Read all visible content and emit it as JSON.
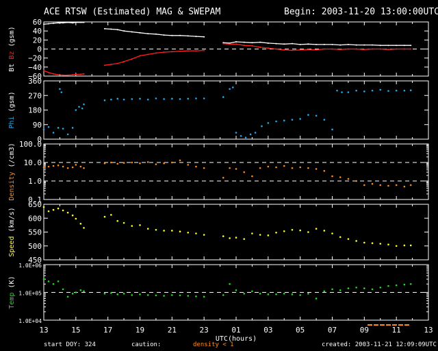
{
  "header": {
    "title": "ACE RTSW (Estimated) MAG & SWEPAM",
    "begin": "Begin: 2003-11-20 13:00:00UTC"
  },
  "footer": {
    "start_doy": "start DOY: 324",
    "caution": "caution:",
    "density_note": "density < 1",
    "created": "created: 2003-11-21 12:09:09UTC"
  },
  "colors": {
    "bt": "#ffffff",
    "bz": "#ff2020",
    "phi": "#22aaee",
    "density": "#ff8c1a",
    "speed": "#ffff20",
    "temp": "#20dd20",
    "axis": "#ffffff",
    "dashed": "#ffffff",
    "background": "#000000"
  },
  "chart_data": [
    {
      "type": "line",
      "panel": "mag",
      "ylabel_parts": [
        {
          "text": "Bt",
          "color": "#ffffff"
        },
        {
          "text": "Bz",
          "color": "#ff2020"
        },
        {
          "text": "(gsm)",
          "color": "#ffffff"
        }
      ],
      "ylim": [
        -60,
        60
      ],
      "scale": "linear",
      "yticks": [
        60,
        40,
        20,
        0,
        -20,
        -40,
        -60
      ],
      "ytick_labels": [
        "60",
        "40",
        "20",
        "0",
        "−20",
        "−40",
        "−60"
      ],
      "dashed": [
        0
      ],
      "series": [
        {
          "key": "bt",
          "x": [
            13.0,
            13.3,
            13.6,
            13.9,
            14.2,
            14.5,
            14.8,
            15.0,
            15.3,
            15.5,
            16.8,
            17.2,
            17.6,
            18.0,
            18.5,
            19.0,
            19.5,
            20.0,
            20.5,
            21.0,
            21.5,
            22.0,
            22.5,
            23.0,
            24.2,
            24.6,
            25.0,
            25.5,
            26.0,
            26.5,
            27.0,
            27.5,
            28.0,
            28.5,
            29.0,
            29.5,
            30.0,
            30.5,
            31.0,
            31.5,
            32.0,
            32.5,
            33.0,
            33.5,
            34.0,
            34.5,
            35.0,
            35.5,
            35.9
          ],
          "y": [
            55,
            56,
            57,
            58,
            58,
            59,
            58,
            59,
            59,
            59,
            45,
            44,
            43,
            40,
            38,
            36,
            34,
            33,
            31,
            30,
            30,
            29,
            28,
            27,
            14,
            13,
            16,
            15,
            14,
            15,
            13,
            12,
            11,
            12,
            10,
            11,
            10,
            10,
            10,
            9,
            10,
            9,
            9,
            9,
            8,
            8,
            8,
            8,
            8
          ]
        },
        {
          "key": "bz",
          "x": [
            13.0,
            13.3,
            13.6,
            13.9,
            14.2,
            14.5,
            14.8,
            15.0,
            15.3,
            15.5,
            16.8,
            17.2,
            17.6,
            18.0,
            18.5,
            19.0,
            19.5,
            20.0,
            20.5,
            21.0,
            21.5,
            22.0,
            22.5,
            23.0,
            24.2,
            24.6,
            25.0,
            25.5,
            26.0,
            26.5,
            27.0,
            27.5,
            28.0,
            28.5,
            29.0,
            29.5,
            30.0,
            30.5,
            31.0,
            31.5,
            32.0,
            32.5,
            33.0,
            33.5,
            34.0,
            34.5,
            35.0,
            35.5,
            35.9
          ],
          "y": [
            -48,
            -52,
            -55,
            -57,
            -58,
            -58,
            -57,
            -56,
            -56,
            -55,
            -36,
            -34,
            -32,
            -28,
            -22,
            -15,
            -12,
            -9,
            -7,
            -6,
            -5,
            -4,
            -4,
            -3,
            12,
            11,
            11,
            8,
            7,
            4,
            2,
            0,
            -2,
            -3,
            -2,
            -1,
            -2,
            0,
            0,
            -1,
            0,
            0,
            -1,
            0,
            0,
            -1,
            0,
            0,
            0
          ]
        }
      ]
    },
    {
      "type": "scatter",
      "panel": "phi",
      "ylabel_parts": [
        {
          "text": "Phi",
          "color": "#22aaee"
        },
        {
          "text": "(gsm)",
          "color": "#ffffff"
        }
      ],
      "ylim": [
        0,
        360
      ],
      "scale": "linear",
      "yticks": [
        360,
        270,
        180,
        90,
        0
      ],
      "ytick_labels": [
        "360",
        "270",
        "180",
        "90",
        "0"
      ],
      "dashed": [],
      "series": [
        {
          "key": "phi",
          "x": [
            13.0,
            13.3,
            13.6,
            13.9,
            14.2,
            14.5,
            14.8,
            15.0,
            15.2,
            15.4,
            15.5,
            14.0,
            14.1,
            16.8,
            17.2,
            17.6,
            18.0,
            18.5,
            19.0,
            19.5,
            20.0,
            20.5,
            21.0,
            21.5,
            22.0,
            22.5,
            23.0,
            24.2,
            24.6,
            24.8,
            25.0,
            25.3,
            25.6,
            25.9,
            26.2,
            26.6,
            27.0,
            27.5,
            28.0,
            28.5,
            29.0,
            29.5,
            30.0,
            30.5,
            31.0,
            31.3,
            31.6,
            32.0,
            32.5,
            33.0,
            33.5,
            34.0,
            34.5,
            35.0,
            35.5,
            35.9
          ],
          "y": [
            60,
            75,
            40,
            70,
            65,
            30,
            70,
            180,
            200,
            190,
            215,
            310,
            290,
            240,
            245,
            250,
            245,
            248,
            250,
            245,
            252,
            248,
            250,
            248,
            250,
            252,
            252,
            260,
            310,
            320,
            40,
            20,
            10,
            30,
            40,
            80,
            100,
            110,
            115,
            120,
            125,
            150,
            145,
            120,
            60,
            300,
            290,
            290,
            300,
            295,
            300,
            305,
            298,
            300,
            300,
            302
          ]
        }
      ]
    },
    {
      "type": "scatter",
      "panel": "density",
      "ylabel_parts": [
        {
          "text": "Density",
          "color": "#ff8c1a"
        },
        {
          "text": "(/cm3)",
          "color": "#ffffff"
        }
      ],
      "ylim": [
        0.1,
        100
      ],
      "scale": "log",
      "yticks": [
        100,
        10,
        1,
        0.1
      ],
      "ytick_labels": [
        "100.0",
        "10.0",
        "1.0",
        "0.1"
      ],
      "dashed": [
        10,
        1
      ],
      "series": [
        {
          "key": "density",
          "x": [
            13.0,
            13.3,
            13.6,
            13.9,
            14.2,
            14.5,
            14.8,
            15.0,
            15.3,
            15.5,
            16.8,
            17.2,
            17.6,
            18.0,
            18.5,
            19.0,
            19.5,
            20.0,
            20.5,
            21.0,
            21.5,
            22.0,
            22.5,
            23.0,
            24.2,
            24.6,
            25.0,
            25.5,
            26.0,
            26.5,
            27.0,
            27.5,
            28.0,
            28.5,
            29.0,
            29.5,
            30.0,
            30.5,
            31.0,
            31.5,
            32.0,
            32.5,
            33.0,
            33.5,
            34.0,
            34.5,
            35.0,
            35.5,
            35.9
          ],
          "y": [
            5.5,
            6.0,
            6.5,
            7.0,
            6.0,
            5.0,
            5.5,
            7.5,
            6.0,
            5.0,
            9.0,
            10.0,
            8.5,
            9.5,
            10.0,
            9.0,
            10.5,
            8.0,
            9.0,
            10.0,
            13.0,
            7.5,
            6.0,
            5.0,
            1.5,
            5.0,
            4.5,
            3.0,
            1.8,
            5.0,
            6.0,
            5.5,
            6.5,
            5.0,
            5.5,
            5.0,
            4.5,
            3.5,
            1.8,
            1.6,
            1.3,
            1.0,
            0.6,
            0.7,
            0.6,
            0.55,
            0.6,
            0.5,
            0.6
          ]
        }
      ]
    },
    {
      "type": "scatter",
      "panel": "speed",
      "ylabel_parts": [
        {
          "text": "Speed",
          "color": "#ffff20"
        },
        {
          "text": "(km/s)",
          "color": "#ffffff"
        }
      ],
      "ylim": [
        450,
        650
      ],
      "scale": "linear",
      "yticks": [
        650,
        600,
        550,
        500,
        450
      ],
      "ytick_labels": [
        "650",
        "600",
        "550",
        "500",
        "450"
      ],
      "dashed": [],
      "series": [
        {
          "key": "speed",
          "x": [
            13.0,
            13.3,
            13.6,
            13.9,
            14.2,
            14.5,
            14.8,
            15.0,
            15.3,
            15.5,
            16.8,
            17.2,
            17.6,
            18.0,
            18.5,
            19.0,
            19.5,
            20.0,
            20.5,
            21.0,
            21.5,
            22.0,
            22.5,
            23.0,
            24.2,
            24.6,
            25.0,
            25.5,
            26.0,
            26.5,
            27.0,
            27.5,
            28.0,
            28.5,
            29.0,
            29.5,
            30.0,
            30.5,
            31.0,
            31.5,
            32.0,
            32.5,
            33.0,
            33.5,
            34.0,
            34.5,
            35.0,
            35.5,
            35.9
          ],
          "y": [
            640,
            625,
            630,
            635,
            628,
            620,
            610,
            598,
            580,
            565,
            605,
            612,
            590,
            583,
            572,
            575,
            562,
            558,
            555,
            555,
            552,
            548,
            545,
            540,
            535,
            528,
            530,
            525,
            545,
            540,
            538,
            548,
            553,
            558,
            556,
            550,
            562,
            555,
            545,
            532,
            525,
            518,
            512,
            510,
            508,
            505,
            500,
            502,
            502
          ]
        }
      ]
    },
    {
      "type": "scatter",
      "panel": "temp",
      "ylabel_parts": [
        {
          "text": "Temp",
          "color": "#20dd20"
        },
        {
          "text": "(K)",
          "color": "#ffffff"
        }
      ],
      "ylim": [
        10000,
        1000000
      ],
      "scale": "log",
      "yticks": [
        1000000,
        100000,
        10000
      ],
      "ytick_labels": [
        "1.0E+06",
        "1.0E+05",
        "1.0E+04"
      ],
      "dashed": [
        100000
      ],
      "series": [
        {
          "key": "temp",
          "x": [
            13.0,
            13.3,
            13.6,
            13.9,
            14.2,
            14.5,
            14.8,
            15.0,
            15.3,
            15.5,
            16.8,
            17.2,
            17.6,
            18.0,
            18.5,
            19.0,
            19.5,
            20.0,
            20.5,
            21.0,
            21.5,
            22.0,
            22.5,
            23.0,
            24.2,
            24.6,
            25.0,
            25.5,
            26.0,
            26.5,
            27.0,
            27.5,
            28.0,
            28.5,
            29.0,
            29.5,
            30.0,
            30.5,
            31.0,
            31.5,
            32.0,
            32.5,
            33.0,
            33.5,
            34.0,
            34.5,
            35.0,
            35.5,
            35.9
          ],
          "y": [
            300000,
            250000,
            200000,
            250000,
            130000,
            70000,
            90000,
            100000,
            120000,
            110000,
            90000,
            95000,
            85000,
            90000,
            80000,
            85000,
            80000,
            78000,
            75000,
            80000,
            78000,
            75000,
            72000,
            70000,
            80000,
            200000,
            120000,
            90000,
            110000,
            90000,
            85000,
            85000,
            90000,
            85000,
            80000,
            90000,
            60000,
            110000,
            130000,
            120000,
            140000,
            150000,
            140000,
            130000,
            150000,
            170000,
            180000,
            190000,
            200000
          ]
        }
      ]
    },
    {
      "type": "line",
      "panel": "xaxis",
      "xlabel": "UTC(hours)",
      "xlim": [
        13,
        37
      ],
      "xtick_labels": [
        "13",
        "15",
        "17",
        "19",
        "21",
        "23",
        "01",
        "03",
        "05",
        "07",
        "09",
        "11",
        "13"
      ],
      "density_flag_ranges": [
        [
          33.2,
          35.8
        ]
      ]
    }
  ]
}
